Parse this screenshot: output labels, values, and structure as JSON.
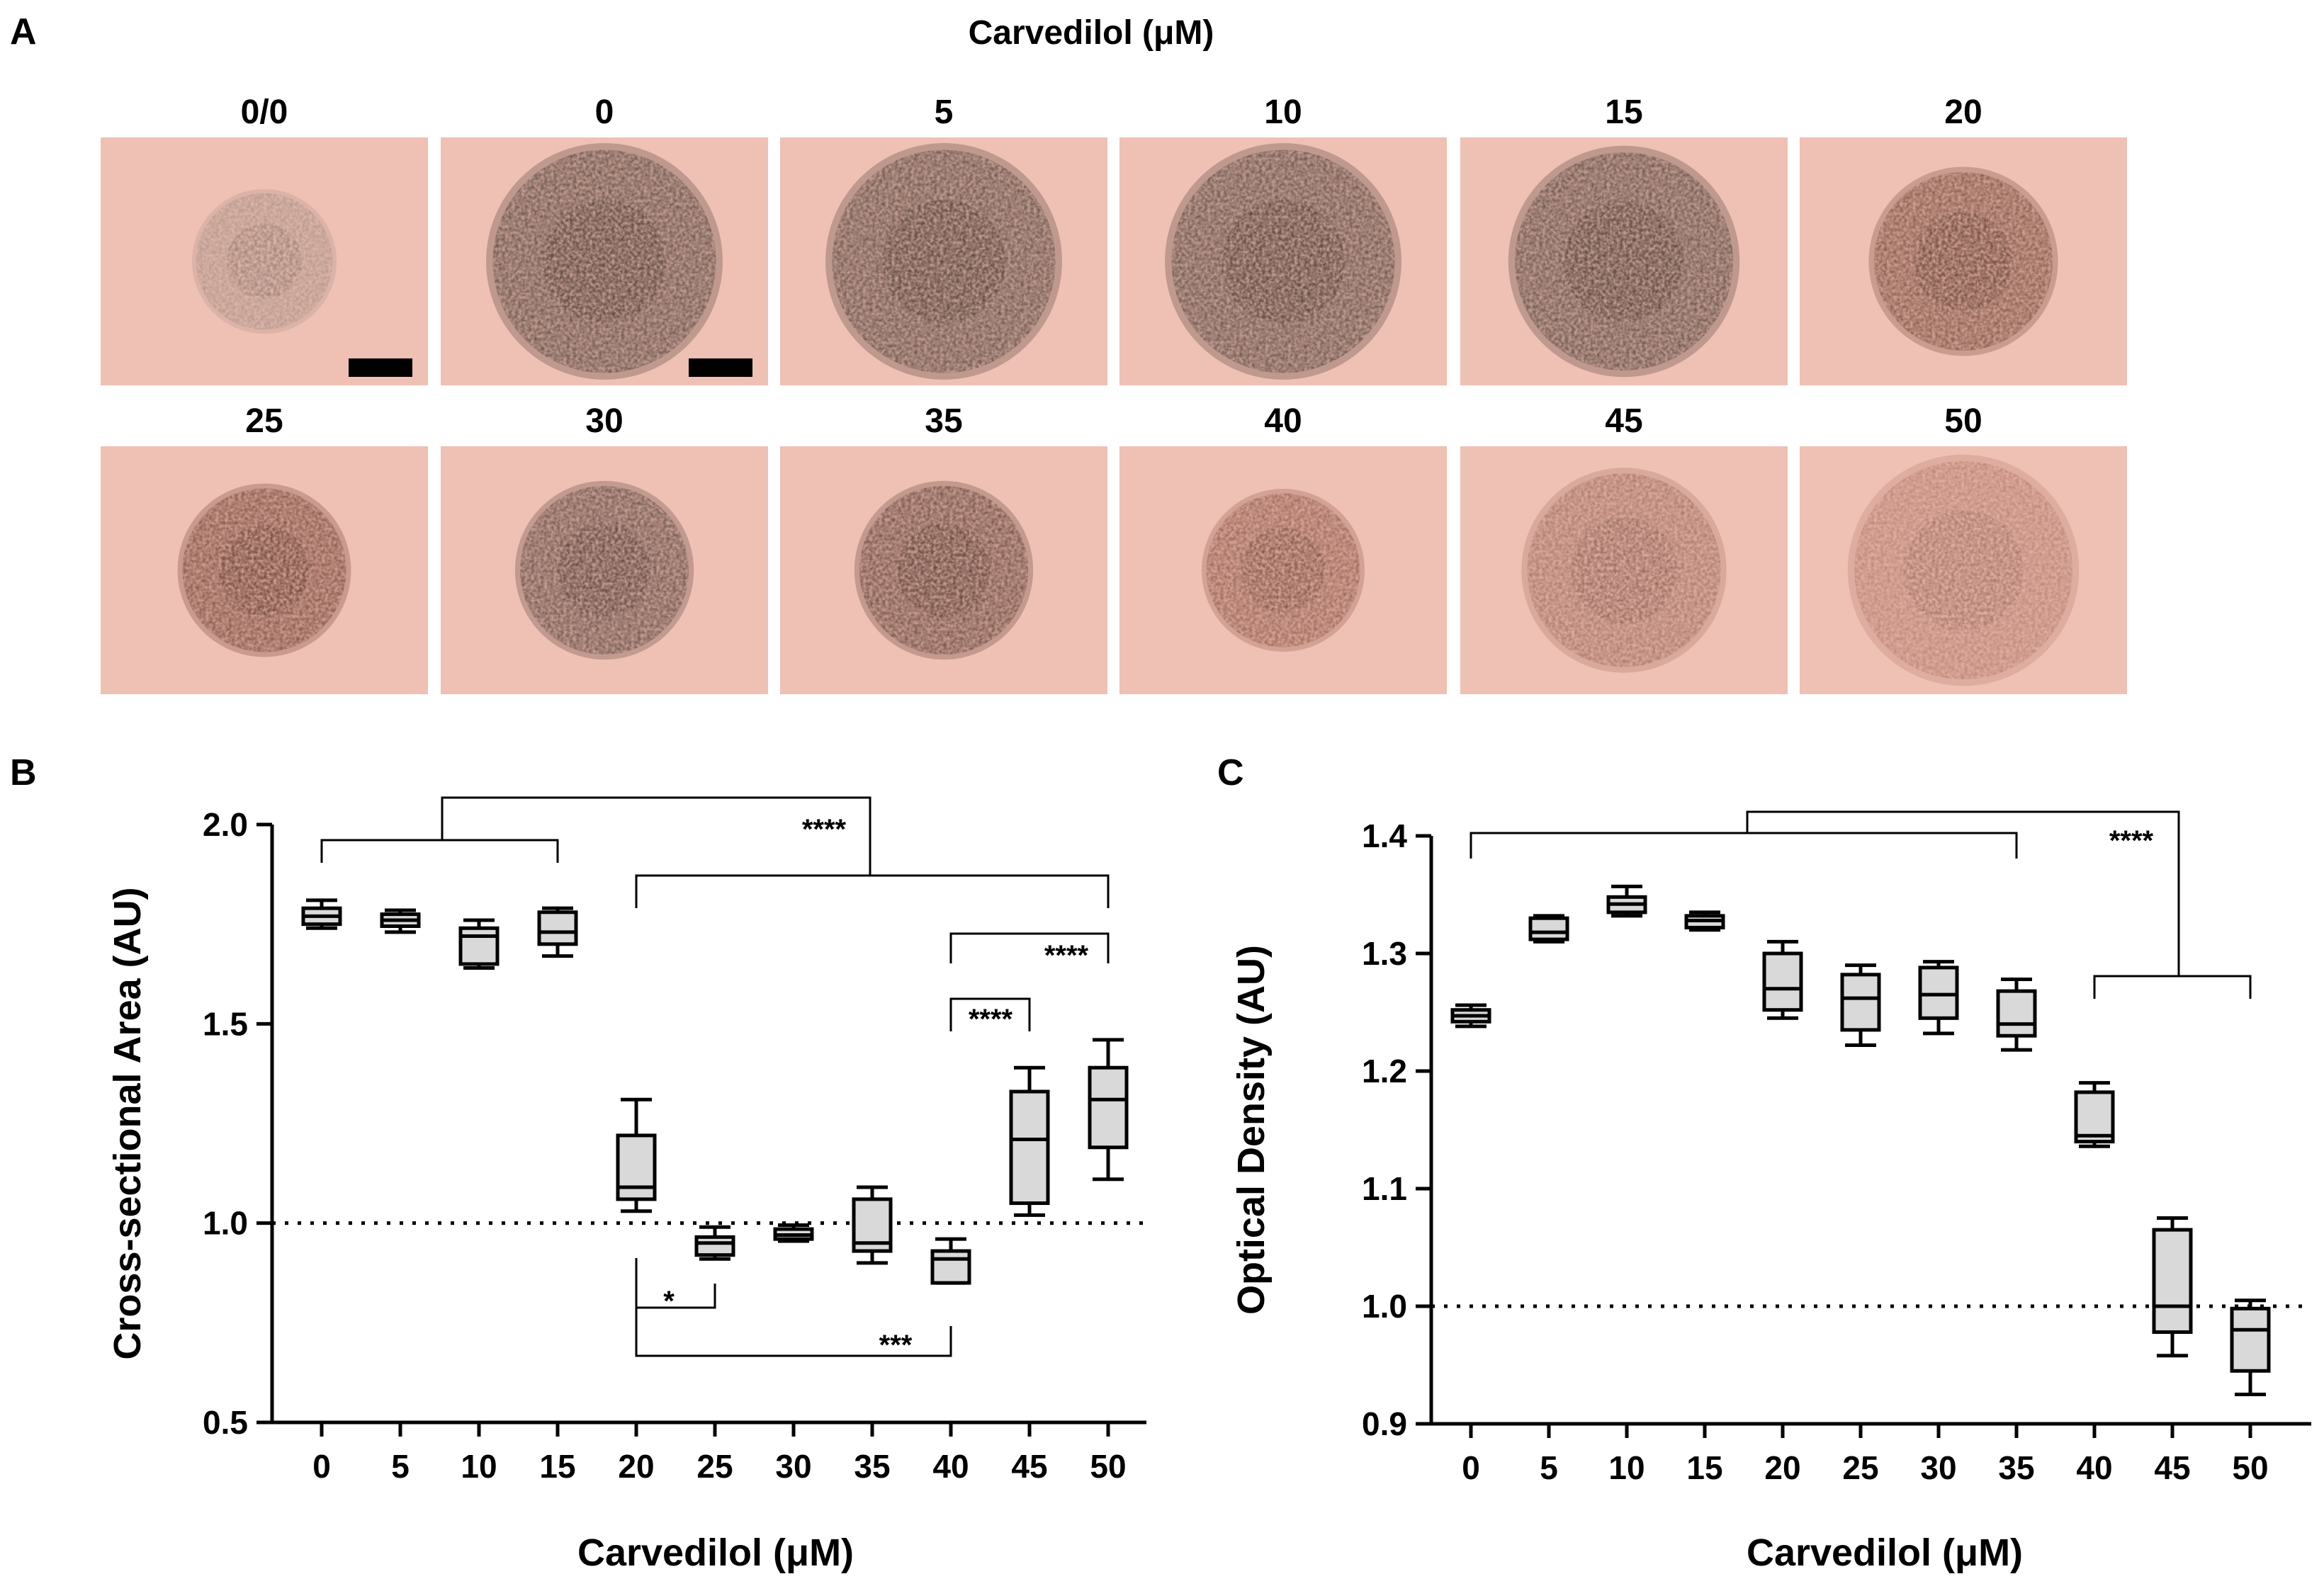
{
  "panel_a": {
    "letter": "A",
    "title": "Carvedilol (μM)",
    "row1_labels": [
      "0/0",
      "0",
      "5",
      "10",
      "15",
      "20"
    ],
    "row2_labels": [
      "25",
      "30",
      "35",
      "40",
      "45",
      "50"
    ],
    "images": [
      {
        "label": "0/0",
        "spheroid_radius": 0.55,
        "density": 0.55,
        "hue": "#8a7a70",
        "scale_bar": true
      },
      {
        "label": "0",
        "spheroid_radius": 0.9,
        "density": 0.85,
        "hue": "#4f4038",
        "scale_bar": true
      },
      {
        "label": "5",
        "spheroid_radius": 0.9,
        "density": 0.85,
        "hue": "#4f4038",
        "scale_bar": false
      },
      {
        "label": "10",
        "spheroid_radius": 0.9,
        "density": 0.85,
        "hue": "#4f4038",
        "scale_bar": false
      },
      {
        "label": "15",
        "spheroid_radius": 0.88,
        "density": 0.85,
        "hue": "#4f4038",
        "scale_bar": false
      },
      {
        "label": "20",
        "spheroid_radius": 0.72,
        "density": 0.8,
        "hue": "#6b3f30",
        "scale_bar": false
      },
      {
        "label": "25",
        "spheroid_radius": 0.66,
        "density": 0.8,
        "hue": "#6b3a2c",
        "scale_bar": false
      },
      {
        "label": "30",
        "spheroid_radius": 0.68,
        "density": 0.8,
        "hue": "#4f3b33",
        "scale_bar": false
      },
      {
        "label": "35",
        "spheroid_radius": 0.68,
        "density": 0.8,
        "hue": "#55372c",
        "scale_bar": false
      },
      {
        "label": "40",
        "spheroid_radius": 0.62,
        "density": 0.7,
        "hue": "#7a4232",
        "scale_bar": false
      },
      {
        "label": "45",
        "spheroid_radius": 0.78,
        "density": 0.55,
        "hue": "#7a4535",
        "scale_bar": false
      },
      {
        "label": "50",
        "spheroid_radius": 0.88,
        "density": 0.45,
        "hue": "#8a4a38",
        "scale_bar": false
      }
    ],
    "background_color": "#efc0b4"
  },
  "chart_data": [
    {
      "panel": "B",
      "type": "box",
      "xlabel": "Carvedilol (μM)",
      "ylabel": "Cross-sectional Area (AU)",
      "categories": [
        "0",
        "5",
        "10",
        "15",
        "20",
        "25",
        "30",
        "35",
        "40",
        "45",
        "50"
      ],
      "ylim": [
        0.5,
        2.0
      ],
      "yticks": [
        "0.5",
        "1.0",
        "1.5",
        "2.0"
      ],
      "reference_line": 1.0,
      "boxes": [
        {
          "min": 1.74,
          "q1": 1.75,
          "median": 1.77,
          "q3": 1.79,
          "max": 1.81
        },
        {
          "min": 1.73,
          "q1": 1.745,
          "median": 1.76,
          "q3": 1.775,
          "max": 1.785
        },
        {
          "min": 1.64,
          "q1": 1.65,
          "median": 1.72,
          "q3": 1.74,
          "max": 1.76
        },
        {
          "min": 1.67,
          "q1": 1.7,
          "median": 1.73,
          "q3": 1.78,
          "max": 1.79
        },
        {
          "min": 1.03,
          "q1": 1.06,
          "median": 1.09,
          "q3": 1.22,
          "max": 1.31
        },
        {
          "min": 0.91,
          "q1": 0.92,
          "median": 0.95,
          "q3": 0.965,
          "max": 0.99
        },
        {
          "min": 0.955,
          "q1": 0.96,
          "median": 0.97,
          "q3": 0.985,
          "max": 0.995
        },
        {
          "min": 0.9,
          "q1": 0.93,
          "median": 0.95,
          "q3": 1.06,
          "max": 1.09
        },
        {
          "min": 0.85,
          "q1": 0.85,
          "median": 0.91,
          "q3": 0.93,
          "max": 0.96
        },
        {
          "min": 1.02,
          "q1": 1.05,
          "median": 1.21,
          "q3": 1.33,
          "max": 1.39
        },
        {
          "min": 1.11,
          "q1": 1.19,
          "median": 1.31,
          "q3": 1.39,
          "max": 1.46
        }
      ],
      "significance": [
        "****",
        "****",
        "****",
        "*",
        "***"
      ]
    },
    {
      "panel": "C",
      "type": "box",
      "xlabel": "Carvedilol (μM)",
      "ylabel": "Optical Density (AU)",
      "categories": [
        "0",
        "5",
        "10",
        "15",
        "20",
        "25",
        "30",
        "35",
        "40",
        "45",
        "50"
      ],
      "ylim": [
        0.9,
        1.4
      ],
      "yticks": [
        "0.9",
        "1.0",
        "1.1",
        "1.2",
        "1.3",
        "1.4"
      ],
      "reference_line": 1.0,
      "boxes": [
        {
          "min": 1.238,
          "q1": 1.242,
          "median": 1.247,
          "q3": 1.252,
          "max": 1.256
        },
        {
          "min": 1.31,
          "q1": 1.312,
          "median": 1.318,
          "q3": 1.33,
          "max": 1.332
        },
        {
          "min": 1.332,
          "q1": 1.335,
          "median": 1.342,
          "q3": 1.348,
          "max": 1.357
        },
        {
          "min": 1.32,
          "q1": 1.322,
          "median": 1.328,
          "q3": 1.332,
          "max": 1.335
        },
        {
          "min": 1.245,
          "q1": 1.252,
          "median": 1.27,
          "q3": 1.3,
          "max": 1.31
        },
        {
          "min": 1.222,
          "q1": 1.235,
          "median": 1.262,
          "q3": 1.282,
          "max": 1.29
        },
        {
          "min": 1.232,
          "q1": 1.245,
          "median": 1.265,
          "q3": 1.288,
          "max": 1.293
        },
        {
          "min": 1.218,
          "q1": 1.23,
          "median": 1.24,
          "q3": 1.268,
          "max": 1.278
        },
        {
          "min": 1.136,
          "q1": 1.14,
          "median": 1.145,
          "q3": 1.182,
          "max": 1.19
        },
        {
          "min": 0.958,
          "q1": 0.978,
          "median": 1.0,
          "q3": 1.065,
          "max": 1.075
        },
        {
          "min": 0.925,
          "q1": 0.945,
          "median": 0.98,
          "q3": 0.998,
          "max": 1.005
        }
      ],
      "significance": [
        "****"
      ]
    }
  ],
  "panel_letters": {
    "b": "B",
    "c": "C"
  },
  "colors": {
    "box_fill": "#d9d9d9",
    "stroke": "#000000",
    "text": "#000000"
  }
}
